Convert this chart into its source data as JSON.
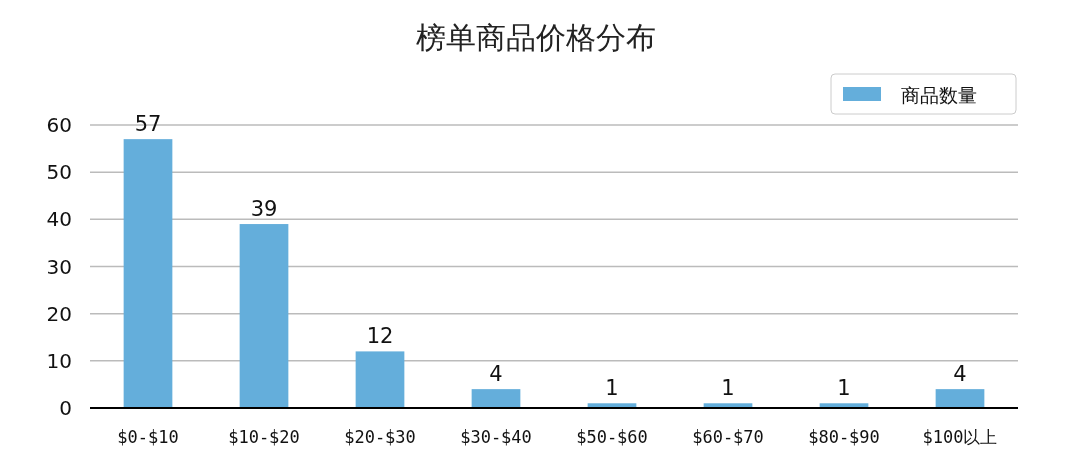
{
  "chart_data": {
    "type": "bar",
    "title": "榜单商品价格分布",
    "categories": [
      "$0-$10",
      "$10-$20",
      "$20-$30",
      "$30-$40",
      "$50-$60",
      "$60-$70",
      "$80-$90",
      "$100以上"
    ],
    "series": [
      {
        "name": "商品数量",
        "color": "#64aedb",
        "values": [
          57,
          39,
          12,
          4,
          1,
          1,
          1,
          4
        ]
      }
    ],
    "ylim": [
      0,
      60
    ],
    "yticks": [
      0,
      10,
      20,
      30,
      40,
      50,
      60
    ],
    "grid": "y",
    "legend": "top right",
    "data_labels": true
  }
}
